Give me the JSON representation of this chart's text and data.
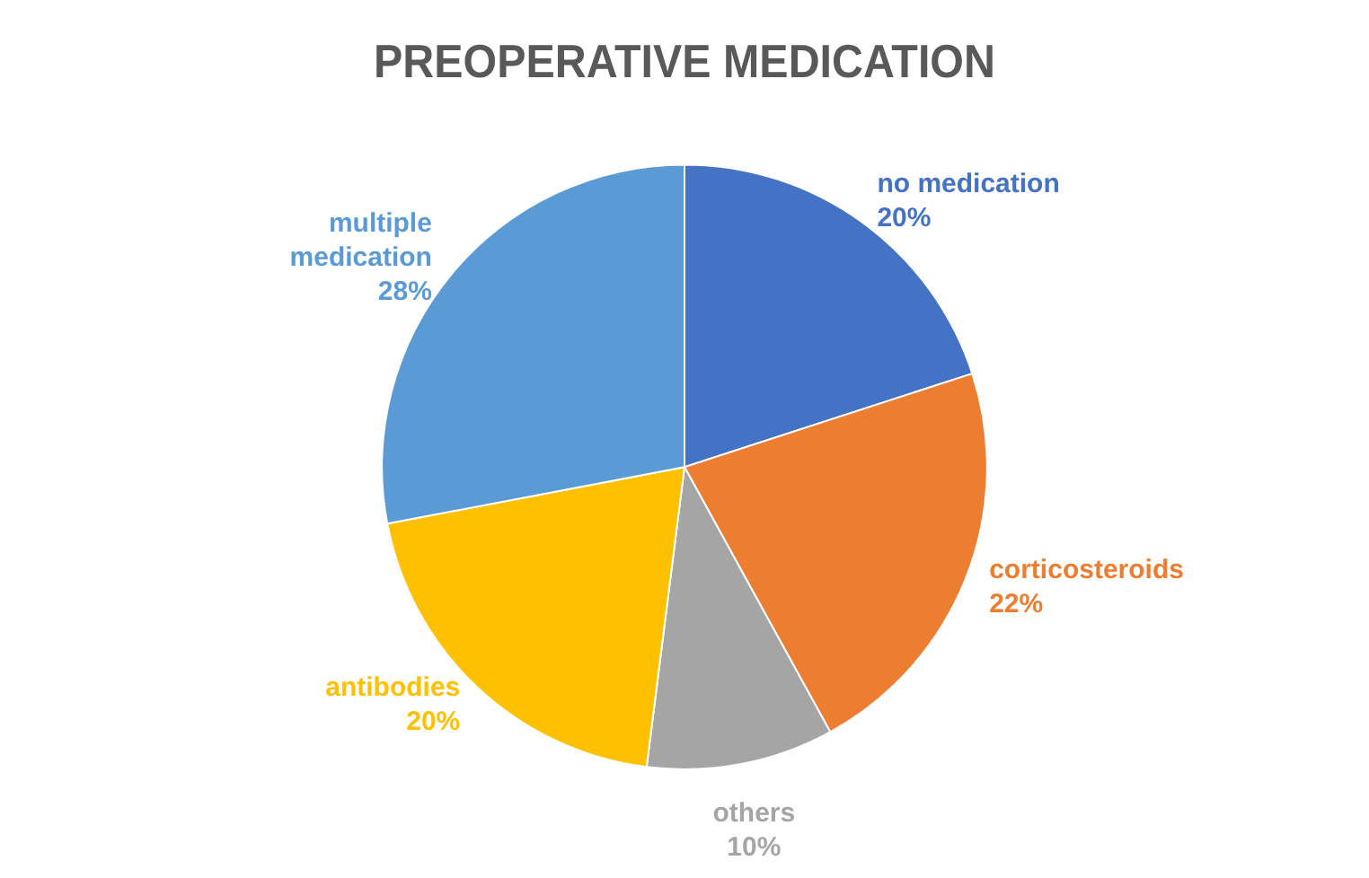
{
  "chart_data": {
    "type": "pie",
    "title": "PREOPERATIVE MEDICATION",
    "categories": [
      "no medication",
      "corticosteroids",
      "others",
      "antibodies",
      "multiple medication"
    ],
    "values": [
      20,
      22,
      10,
      20,
      28
    ],
    "value_labels": [
      "20%",
      "22%",
      "10%",
      "20%",
      "28%"
    ],
    "colors": [
      "#4472c4",
      "#ed7d31",
      "#a5a5a5",
      "#ffc000",
      "#5b9bd5"
    ],
    "legend": false
  }
}
